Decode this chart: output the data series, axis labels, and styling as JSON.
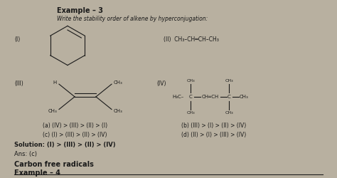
{
  "title": "Example – 3",
  "subtitle": "Write the stability order of alkene by hyperconjugation:",
  "bg_color": "#b8b0a0",
  "text_color": "#1a1a1a",
  "choice_a": "(a) (IV) > (III) > (II) > (I)",
  "choice_b": "(b) (III) > (I) > (II) > (IV)",
  "choice_c": "(c) (I) > (III) > (II) > (IV)",
  "choice_d": "(d) (II) > (I) > (III) > (IV)",
  "solution": "Solution: (I) > (III) > (II) > (IV)",
  "ans": "Ans: (c)",
  "footer": "Carbon free radicals",
  "footer2": "Example – 4"
}
